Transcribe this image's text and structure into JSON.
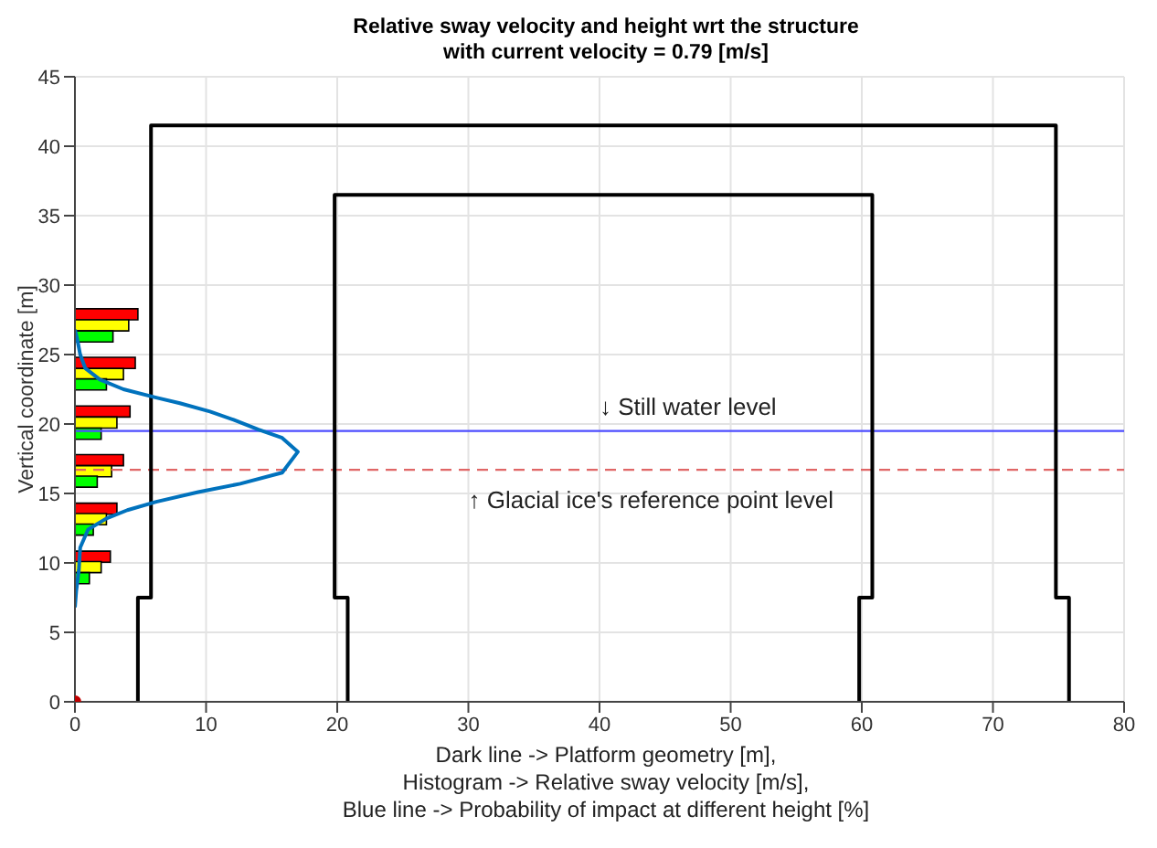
{
  "chart_data": {
    "type": "line",
    "title": "Relative sway velocity and height wrt the structure\nwith current velocity = 0.79 [m/s]",
    "xlabel": "Dark line -> Platform geometry [m],\nHistogram -> Relative sway velocity [m/s],\nBlue line -> Probability of impact at different height [%]",
    "ylabel": "Vertical coordinate [m]",
    "orientation": "horizontal",
    "series": [
      {
        "type": "bar",
        "color": "#ff0000",
        "x": [
          27.9,
          24.4,
          20.9,
          17.4,
          13.9,
          10.45
        ],
        "values": [
          4.8,
          4.6,
          4.2,
          3.7,
          3.2,
          2.7
        ]
      },
      {
        "type": "bar",
        "color": "#ffff00",
        "x": [
          27.1,
          23.6,
          20.1,
          16.6,
          13.15,
          9.7
        ],
        "values": [
          4.1,
          3.7,
          3.2,
          2.8,
          2.4,
          2.0
        ]
      },
      {
        "type": "bar",
        "color": "#00ff00",
        "x": [
          26.3,
          22.85,
          19.3,
          15.85,
          12.4,
          8.9
        ],
        "values": [
          2.9,
          2.4,
          2.0,
          1.7,
          1.4,
          1.1
        ]
      },
      {
        "color": "#000000",
        "x": [
          0,
          7.5,
          7.5,
          41.5,
          41.5,
          7.5,
          7.5,
          0,
          null,
          0,
          7.5,
          7.5,
          36.5,
          36.5,
          7.5,
          7.5,
          0
        ],
        "values": [
          4.8,
          4.8,
          5.8,
          5.8,
          74.8,
          74.8,
          75.8,
          75.8,
          null,
          20.8,
          20.8,
          19.8,
          19.8,
          60.8,
          60.8,
          59.8,
          59.8
        ]
      },
      {
        "color": "#0072bd",
        "x": [
          6.8,
          8,
          9.5,
          11.1,
          12.4,
          13.2,
          13.8,
          14.4,
          15.1,
          15.7,
          16.5,
          18.0,
          19.0,
          19.6,
          20.3,
          20.9,
          21.5,
          21.9,
          22.5,
          23.2,
          24.0,
          25.0,
          26.0,
          26.8
        ],
        "values": [
          0,
          0.1,
          0.3,
          0.4,
          1.0,
          2.4,
          4.0,
          6.2,
          9.4,
          12.6,
          15.8,
          17.0,
          15.8,
          14.0,
          12.1,
          10.3,
          8.0,
          6.2,
          3.7,
          1.9,
          0.8,
          0.4,
          0.2,
          0
        ]
      },
      {
        "type": "scatter",
        "color": "#c00000",
        "x": [
          0
        ],
        "values": [
          0
        ]
      }
    ],
    "xlim": [
      0,
      80
    ],
    "xticks": [
      0,
      10,
      20,
      30,
      40,
      50,
      60,
      70,
      80
    ],
    "ylim": [
      0,
      45
    ],
    "yticks": [
      0,
      5,
      10,
      15,
      20,
      25,
      30,
      35,
      40,
      45
    ],
    "grid": true,
    "ref_lines": [
      {
        "axis": "y",
        "value": 19.5,
        "color": "#4d4dff",
        "line_style": "solid",
        "label": "↓ Still water level"
      },
      {
        "axis": "y",
        "value": 16.7,
        "color": "#e06666",
        "line_style": "dashed",
        "label": "↑ Glacial ice's reference point level"
      }
    ]
  }
}
